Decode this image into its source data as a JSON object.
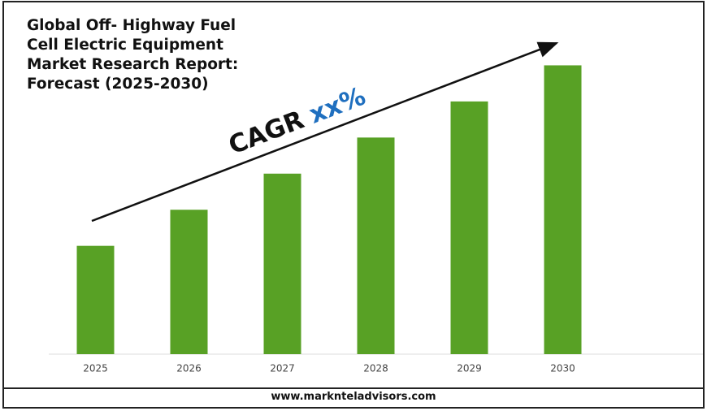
{
  "chart_data": {
    "type": "bar",
    "title": "Global Off- Highway Fuel Cell Electric Equipment Market Research Report: Forecast (2025-2030)",
    "categories": [
      "2025",
      "2026",
      "2027",
      "2028",
      "2029",
      "2030"
    ],
    "values": [
      3,
      4,
      5,
      6,
      7,
      8
    ],
    "color": "#58a125",
    "ylim": [
      0,
      9
    ],
    "annotation": {
      "label": "CAGR",
      "value": "xx%",
      "value_color": "#1f6fbf"
    },
    "footer": "www.marknteladvisors.com"
  }
}
